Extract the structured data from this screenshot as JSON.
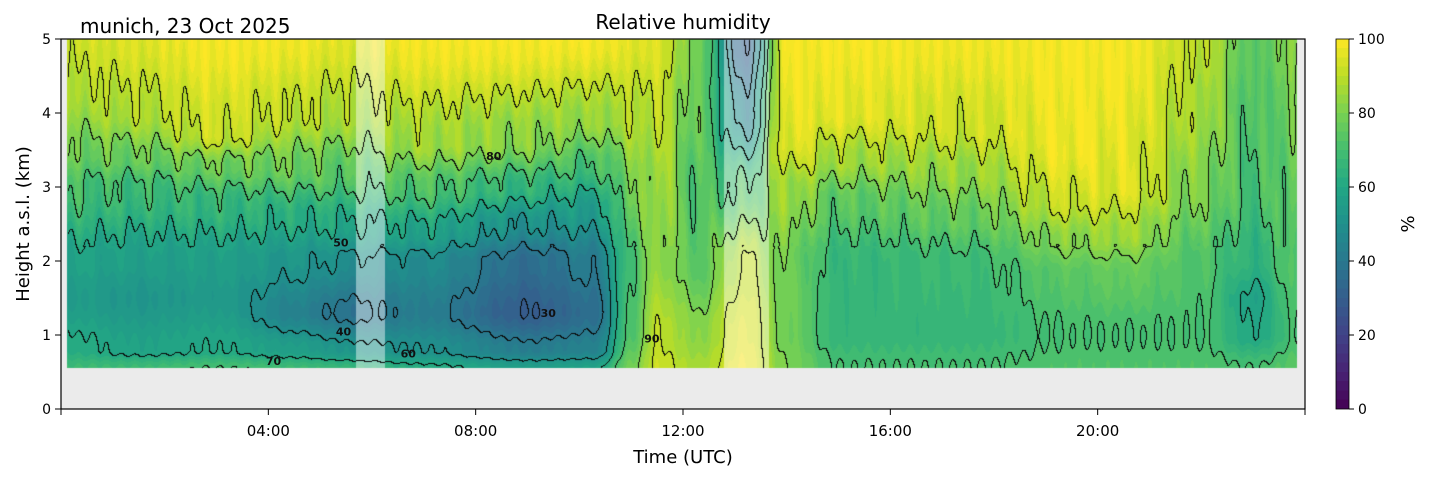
{
  "chart_data": {
    "type": "heatmap",
    "subtype": "filled-contour",
    "title": "Relative humidity",
    "subtitle": "munich, 23 Oct 2025",
    "xlabel": "Time (UTC)",
    "ylabel": "Height a.s.l. (km)",
    "xlim_hours": [
      0,
      24
    ],
    "ylim_km": [
      0,
      5
    ],
    "x_ticks": [
      {
        "hour": 4,
        "label": "04:00"
      },
      {
        "hour": 8,
        "label": "08:00"
      },
      {
        "hour": 12,
        "label": "12:00"
      },
      {
        "hour": 16,
        "label": "16:00"
      },
      {
        "hour": 20,
        "label": "20:00"
      }
    ],
    "y_ticks": [
      {
        "value": 0,
        "label": "0"
      },
      {
        "value": 1,
        "label": "1"
      },
      {
        "value": 2,
        "label": "2"
      },
      {
        "value": 3,
        "label": "3"
      },
      {
        "value": 4,
        "label": "4"
      },
      {
        "value": 5,
        "label": "5"
      }
    ],
    "data_bottom_km": 0.55,
    "data_start_hour": 0.12,
    "data_end_hour": 23.85,
    "no_data_color": "#ebebeb",
    "colorbar": {
      "label": "%",
      "colormap": "viridis",
      "range": [
        0,
        100
      ],
      "ticks": [
        {
          "value": 0,
          "label": "0"
        },
        {
          "value": 20,
          "label": "20"
        },
        {
          "value": 40,
          "label": "40"
        },
        {
          "value": 60,
          "label": "60"
        },
        {
          "value": 80,
          "label": "80"
        },
        {
          "value": 100,
          "label": "100"
        }
      ]
    },
    "contour_levels": [
      30,
      40,
      50,
      60,
      70,
      80,
      90
    ],
    "contour_labels": [
      {
        "text": "80",
        "hour": 8.35,
        "km": 3.42
      },
      {
        "text": "50",
        "hour": 5.4,
        "km": 2.25
      },
      {
        "text": "40",
        "hour": 5.45,
        "km": 1.05
      },
      {
        "text": "70",
        "hour": 4.1,
        "km": 0.65
      },
      {
        "text": "60",
        "hour": 6.7,
        "km": 0.75
      },
      {
        "text": "30",
        "hour": 9.4,
        "km": 1.3
      },
      {
        "text": "90",
        "hour": 11.4,
        "km": 0.95
      }
    ],
    "masked_periods": [
      {
        "start_hour": 5.7,
        "end_hour": 6.25,
        "note": "semi-transparent overlay"
      },
      {
        "start_hour": 12.8,
        "end_hour": 13.65,
        "note": "semi-transparent overlay"
      }
    ],
    "rh_profile_keyframes": [
      {
        "hour": 0.1,
        "rh_by_km": [
          [
            0.55,
            68
          ],
          [
            0.8,
            62
          ],
          [
            1.5,
            55
          ],
          [
            2.0,
            58
          ],
          [
            3.0,
            70
          ],
          [
            3.5,
            78
          ],
          [
            4.3,
            88
          ],
          [
            5.0,
            92
          ]
        ]
      },
      {
        "hour": 1.5,
        "rh_by_km": [
          [
            0.55,
            68
          ],
          [
            0.8,
            58
          ],
          [
            1.5,
            52
          ],
          [
            2.0,
            56
          ],
          [
            3.0,
            68
          ],
          [
            3.4,
            77
          ],
          [
            4.0,
            88
          ],
          [
            5.0,
            95
          ]
        ]
      },
      {
        "hour": 3.0,
        "rh_by_km": [
          [
            0.55,
            70
          ],
          [
            0.8,
            60
          ],
          [
            1.5,
            54
          ],
          [
            2.0,
            56
          ],
          [
            2.8,
            66
          ],
          [
            3.3,
            78
          ],
          [
            3.7,
            92
          ],
          [
            5.0,
            99
          ]
        ]
      },
      {
        "hour": 4.5,
        "rh_by_km": [
          [
            0.55,
            68
          ],
          [
            0.8,
            56
          ],
          [
            1.3,
            44
          ],
          [
            2.0,
            52
          ],
          [
            2.6,
            62
          ],
          [
            3.3,
            78
          ],
          [
            4.0,
            90
          ],
          [
            5.0,
            98
          ]
        ]
      },
      {
        "hour": 5.5,
        "rh_by_km": [
          [
            0.55,
            66
          ],
          [
            0.8,
            52
          ],
          [
            1.3,
            38
          ],
          [
            2.0,
            49
          ],
          [
            2.5,
            60
          ],
          [
            3.2,
            74
          ],
          [
            4.0,
            87
          ],
          [
            5.0,
            95
          ]
        ]
      },
      {
        "hour": 7.0,
        "rh_by_km": [
          [
            0.55,
            62
          ],
          [
            0.8,
            50
          ],
          [
            1.3,
            42
          ],
          [
            2.0,
            48
          ],
          [
            2.4,
            58
          ],
          [
            3.0,
            72
          ],
          [
            3.6,
            86
          ],
          [
            5.0,
            99
          ]
        ]
      },
      {
        "hour": 9.0,
        "rh_by_km": [
          [
            0.55,
            56
          ],
          [
            0.8,
            42
          ],
          [
            1.3,
            30
          ],
          [
            2.0,
            36
          ],
          [
            2.5,
            50
          ],
          [
            3.0,
            65
          ],
          [
            3.6,
            82
          ],
          [
            5.0,
            99
          ]
        ]
      },
      {
        "hour": 10.3,
        "rh_by_km": [
          [
            0.55,
            58
          ],
          [
            0.8,
            44
          ],
          [
            1.3,
            36
          ],
          [
            2.0,
            42
          ],
          [
            2.7,
            55
          ],
          [
            3.3,
            70
          ],
          [
            3.9,
            84
          ],
          [
            5.0,
            99
          ]
        ]
      },
      {
        "hour": 11.0,
        "rh_by_km": [
          [
            0.55,
            78
          ],
          [
            1.0,
            72
          ],
          [
            2.0,
            70
          ],
          [
            3.0,
            78
          ],
          [
            4.0,
            88
          ],
          [
            5.0,
            96
          ]
        ]
      },
      {
        "hour": 11.5,
        "rh_by_km": [
          [
            0.55,
            92
          ],
          [
            1.0,
            90
          ],
          [
            2.0,
            84
          ],
          [
            3.0,
            86
          ],
          [
            4.0,
            90
          ],
          [
            5.0,
            95
          ]
        ]
      },
      {
        "hour": 12.3,
        "rh_by_km": [
          [
            0.55,
            86
          ],
          [
            1.0,
            82
          ],
          [
            2.0,
            74
          ],
          [
            3.0,
            72
          ],
          [
            4.0,
            76
          ],
          [
            5.0,
            78
          ]
        ]
      },
      {
        "hour": 13.2,
        "rh_by_km": [
          [
            0.55,
            98
          ],
          [
            1.0,
            96
          ],
          [
            2.0,
            90
          ],
          [
            3.0,
            70
          ],
          [
            4.0,
            45
          ],
          [
            5.0,
            30
          ]
        ]
      },
      {
        "hour": 14.0,
        "rh_by_km": [
          [
            0.55,
            80
          ],
          [
            1.0,
            78
          ],
          [
            2.0,
            78
          ],
          [
            3.0,
            86
          ],
          [
            3.6,
            96
          ],
          [
            5.0,
            99
          ]
        ]
      },
      {
        "hour": 15.0,
        "rh_by_km": [
          [
            0.55,
            70
          ],
          [
            1.0,
            66
          ],
          [
            2.0,
            66
          ],
          [
            2.8,
            74
          ],
          [
            3.4,
            86
          ],
          [
            4.0,
            96
          ],
          [
            5.0,
            99
          ]
        ]
      },
      {
        "hour": 17.5,
        "rh_by_km": [
          [
            0.55,
            70
          ],
          [
            1.0,
            66
          ],
          [
            2.0,
            68
          ],
          [
            2.6,
            76
          ],
          [
            3.2,
            84
          ],
          [
            3.8,
            92
          ],
          [
            5.0,
            98
          ]
        ]
      },
      {
        "hour": 19.5,
        "rh_by_km": [
          [
            0.55,
            72
          ],
          [
            1.0,
            70
          ],
          [
            1.8,
            74
          ],
          [
            2.3,
            82
          ],
          [
            2.8,
            92
          ],
          [
            3.5,
            98
          ],
          [
            5.0,
            99
          ]
        ]
      },
      {
        "hour": 20.5,
        "rh_by_km": [
          [
            0.55,
            72
          ],
          [
            1.0,
            70
          ],
          [
            1.8,
            76
          ],
          [
            2.4,
            86
          ],
          [
            3.0,
            95
          ],
          [
            5.0,
            99
          ]
        ]
      },
      {
        "hour": 22.0,
        "rh_by_km": [
          [
            0.55,
            72
          ],
          [
            1.0,
            70
          ],
          [
            2.0,
            72
          ],
          [
            3.0,
            80
          ],
          [
            4.0,
            86
          ],
          [
            5.0,
            90
          ]
        ]
      },
      {
        "hour": 23.0,
        "rh_by_km": [
          [
            0.55,
            70
          ],
          [
            1.0,
            60
          ],
          [
            1.5,
            58
          ],
          [
            2.0,
            64
          ],
          [
            3.0,
            70
          ],
          [
            4.0,
            72
          ],
          [
            5.0,
            74
          ]
        ]
      },
      {
        "hour": 23.85,
        "rh_by_km": [
          [
            0.55,
            74
          ],
          [
            1.0,
            70
          ],
          [
            2.0,
            74
          ],
          [
            3.0,
            76
          ],
          [
            4.0,
            78
          ],
          [
            5.0,
            82
          ]
        ]
      }
    ]
  }
}
